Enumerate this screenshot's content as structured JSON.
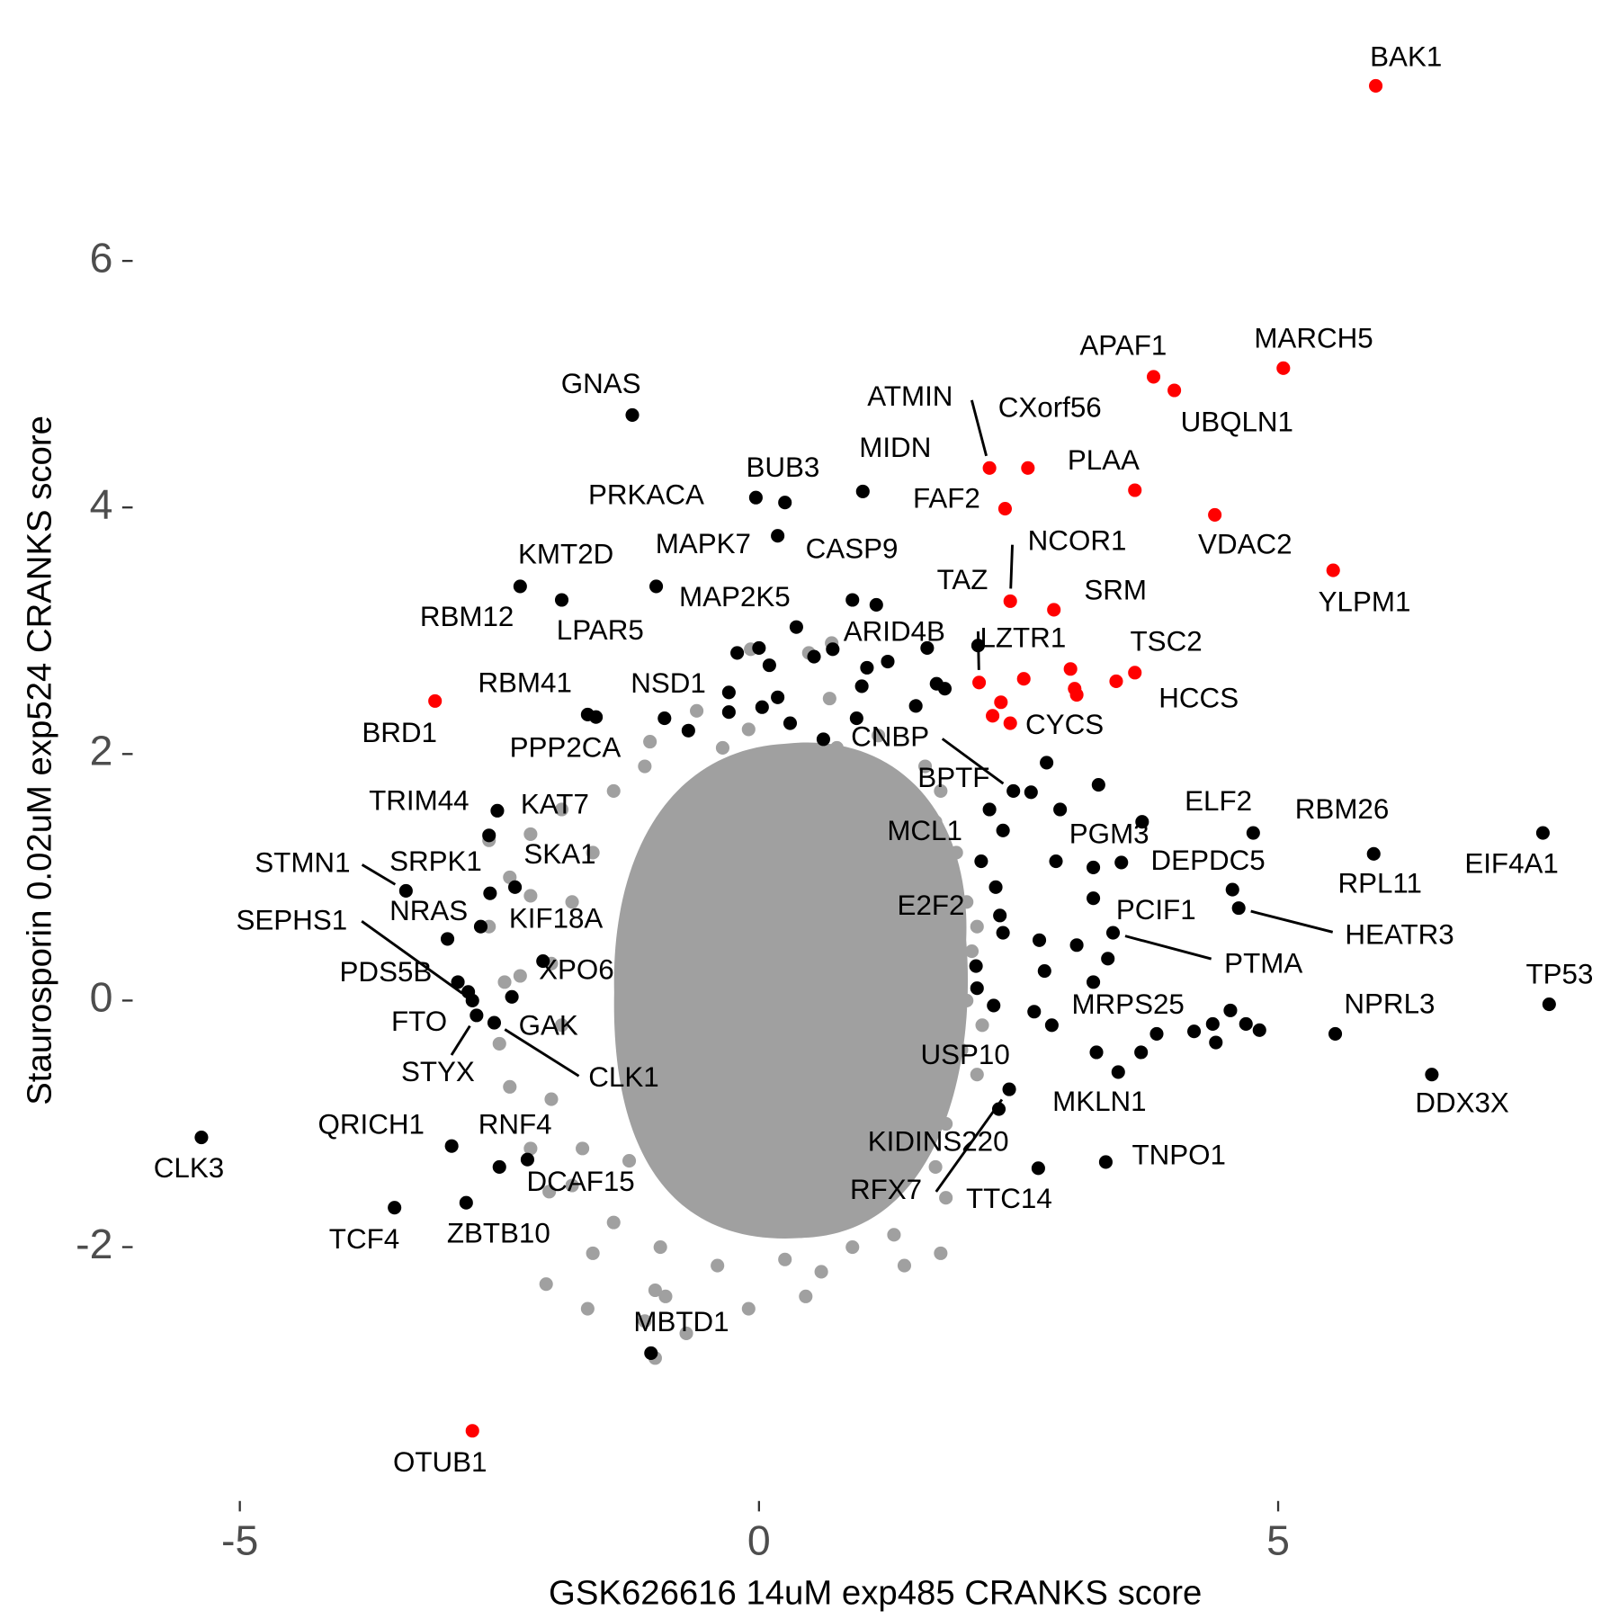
{
  "chart_data": {
    "type": "scatter",
    "xlabel": "GSK626616 14uM exp485 CRANKS score",
    "ylabel": "Staurosporin 0.02uM exp524 CRANKS score",
    "xlim": [
      -5.65,
      7.83
    ],
    "ylim": [
      -4.0,
      7.82
    ],
    "xticks": [
      -5,
      0,
      5
    ],
    "yticks": [
      -2,
      0,
      2,
      4,
      6
    ],
    "grid": false,
    "series": [
      {
        "color": "#a0a0a0",
        "x": [
          -0.08,
          0.48,
          0.68,
          -0.35,
          -1.05,
          -0.55,
          0.95,
          1.3,
          1.7,
          1.9,
          2.0,
          2.05,
          2.0,
          1.95,
          2.1,
          1.8,
          1.7,
          1.75,
          1.3,
          0.9,
          0.6,
          0.25,
          -0.4,
          -0.9,
          -1.1,
          -1.65,
          -2.05,
          -1.6,
          -1.4,
          -1.8,
          -2.2,
          -2.4,
          -2.5,
          -2.3,
          -2.6,
          -2.4,
          -2.2,
          -2.6,
          -1.9,
          -1.4,
          -1.1,
          -1.6,
          -1.8,
          -2.0,
          -1.9,
          -2.0,
          -1.7,
          -1.0,
          -0.1,
          0.45,
          1.4,
          1.8,
          2.15,
          2.1,
          1.6,
          1.15,
          0.75,
          -0.1,
          -0.6,
          -0.95,
          -1.25,
          -0.7,
          -1.0,
          -2.02,
          -2.2,
          -2.45,
          0.7,
          1.75
        ],
        "y": [
          2.85,
          2.82,
          2.45,
          2.05,
          2.1,
          1.78,
          1.85,
          1.6,
          1.45,
          1.2,
          0.8,
          0.4,
          0.0,
          -0.4,
          -0.6,
          -1.0,
          -1.35,
          -2.05,
          -1.9,
          -2.0,
          -2.2,
          -2.1,
          -2.15,
          -2.4,
          -2.6,
          -2.5,
          -2.3,
          -2.05,
          -1.8,
          -1.5,
          -1.2,
          -0.7,
          -0.35,
          0.2,
          0.6,
          1.0,
          1.35,
          1.3,
          1.55,
          1.7,
          1.9,
          1.2,
          0.8,
          0.3,
          -0.2,
          -0.8,
          -1.2,
          -2.35,
          -2.5,
          -2.4,
          -2.15,
          -1.6,
          -0.2,
          0.6,
          1.9,
          2.15,
          2.05,
          2.2,
          2.35,
          -2.0,
          -1.3,
          -2.7,
          -2.9,
          -1.55,
          0.85,
          0.15,
          2.9,
          1.7
        ]
      },
      {
        "color": "#000000",
        "x": [
          -1.22,
          -0.03,
          0.25,
          1.0,
          0.18,
          -0.99,
          -1.9,
          -2.3,
          -1.65,
          -1.57,
          -0.91,
          -0.29,
          0.36,
          0.71,
          2.45,
          2.62,
          2.22,
          2.9,
          2.32,
          3.49,
          3.69,
          4.76,
          5.92,
          7.55,
          4.62,
          3.22,
          3.41,
          7.61,
          5.55,
          6.48,
          2.82,
          2.65,
          3.46,
          2.31,
          2.41,
          2.69,
          3.34,
          -1.04,
          -5.37,
          -2.96,
          -2.5,
          -2.23,
          -3.51,
          -2.82,
          -2.72,
          -2.8,
          -2.55,
          -2.38,
          -2.9,
          -2.76,
          -3.0,
          -2.68,
          -2.08,
          -3.4,
          -2.35,
          -2.59,
          -2.52,
          -2.6,
          2.11,
          0.9,
          1.13,
          -0.21,
          0,
          0.1,
          0.53,
          1.04,
          1.24,
          1.62,
          0.99,
          1.51,
          1.71,
          1.79,
          0.18,
          0.03,
          0.3,
          0.62,
          0.94,
          -0.29,
          -0.68,
          2.77,
          3.27,
          2.35,
          2.14,
          2.86,
          3.22,
          2.28,
          2.35,
          2.7,
          3.06,
          3.36,
          2.09,
          2.1,
          2.26,
          2.75,
          3.22,
          3.25,
          3.83,
          3.68,
          4.19,
          4.37,
          4.4,
          4.54,
          4.69,
          4.82,
          4.56
        ],
        "y": [
          4.75,
          4.08,
          4.04,
          4.13,
          3.77,
          3.36,
          3.25,
          3.36,
          2.32,
          2.3,
          2.29,
          2.5,
          3.03,
          2.85,
          1.7,
          1.69,
          1.55,
          1.55,
          0.69,
          1.12,
          1.45,
          1.36,
          1.19,
          1.36,
          0.75,
          0.83,
          0.55,
          -0.03,
          -0.27,
          -0.6,
          -0.2,
          -0.09,
          -0.58,
          -0.88,
          -0.72,
          -1.36,
          -1.31,
          -2.86,
          -1.11,
          -1.18,
          -1.35,
          -1.29,
          -1.68,
          -1.64,
          -0.12,
          0.07,
          -0.18,
          0.03,
          0.15,
          0.0,
          0.5,
          0.6,
          0.32,
          0.89,
          0.92,
          0.87,
          1.54,
          1.34,
          2.88,
          3.25,
          3.21,
          2.82,
          2.86,
          2.72,
          2.79,
          2.7,
          2.75,
          2.86,
          2.55,
          2.39,
          2.57,
          2.53,
          2.46,
          2.38,
          2.25,
          2.12,
          2.29,
          2.34,
          2.19,
          1.93,
          1.75,
          1.38,
          1.13,
          1.13,
          1.08,
          0.92,
          0.55,
          0.49,
          0.45,
          0.34,
          0.28,
          0.1,
          -0.04,
          0.24,
          0.15,
          -0.42,
          -0.27,
          -0.42,
          -0.25,
          -0.19,
          -0.34,
          -0.08,
          -0.19,
          -0.24,
          0.9
        ],
        "labels": [
          "GNAS",
          "PRKACA",
          "BUB3",
          "MIDN",
          "CASP9",
          "MAPK7",
          "KMT2D",
          "RBM12",
          "LPAR5",
          "RBM41",
          "PPP2CA",
          "NSD1",
          "MAP2K5",
          "ARID4B",
          "CNBP",
          "BPTF",
          "MCL1",
          "PGM3",
          "E2F2",
          "DEPDC5",
          "ELF2",
          "RBM26",
          "RPL11",
          "EIF4A1",
          "HEATR3",
          "PCIF1",
          "PTMA",
          "TP53",
          "NPRL3",
          "DDX3X",
          "MRPS25",
          "USP10",
          "MKLN1",
          "KIDINS220",
          "RFX7",
          "TTC14",
          "TNPO1",
          "MBTD1",
          "CLK3",
          "QRICH1",
          "RNF4",
          "DCAF15",
          "TCF4",
          "ZBTB10",
          "STYX",
          "FTO",
          "CLK1",
          "GAK",
          "PDS5B",
          "SEPHS1",
          "NRAS",
          "KIF18A",
          "XPO6",
          "STMN1",
          "SKA1",
          "SRPK1",
          "TRIM44",
          "KAT7",
          "TAZ",
          null,
          null,
          null,
          null,
          null,
          null,
          null,
          null,
          null,
          null,
          null,
          null,
          null,
          null,
          null,
          null,
          null,
          null,
          null,
          null,
          null,
          null,
          null,
          null,
          null,
          null,
          null,
          null,
          null,
          null,
          null,
          null,
          null,
          null,
          null,
          null,
          null,
          null,
          null,
          null,
          null,
          null,
          null,
          null,
          null,
          null,
          null
        ]
      },
      {
        "color": "#ff0000",
        "x": [
          5.94,
          5.05,
          3.8,
          4.0,
          2.22,
          2.59,
          3.62,
          2.37,
          4.39,
          5.53,
          2.42,
          2.84,
          3.62,
          3.44,
          2.12,
          2.42,
          -3.12,
          -2.76,
          2.55,
          3.0,
          3.04,
          3.06,
          2.33,
          2.25
        ],
        "y": [
          7.42,
          5.13,
          5.06,
          4.95,
          4.32,
          4.32,
          4.14,
          3.99,
          3.94,
          3.49,
          3.24,
          3.17,
          2.66,
          2.59,
          2.58,
          2.25,
          2.43,
          -3.49,
          2.61,
          2.69,
          2.53,
          2.48,
          2.42,
          2.31
        ],
        "labels": [
          "BAK1",
          "MARCH5",
          "APAF1",
          "UBQLN1",
          "ATMIN",
          "CXorf56",
          "PLAA",
          "FAF2",
          "VDAC2",
          "YLPM1",
          "NCOR1",
          "SRM",
          "TSC2",
          "HCCS",
          "LZTR1",
          "CYCS",
          "BRD1",
          "OTUB1",
          null,
          null,
          null,
          null,
          null,
          null
        ]
      }
    ]
  }
}
